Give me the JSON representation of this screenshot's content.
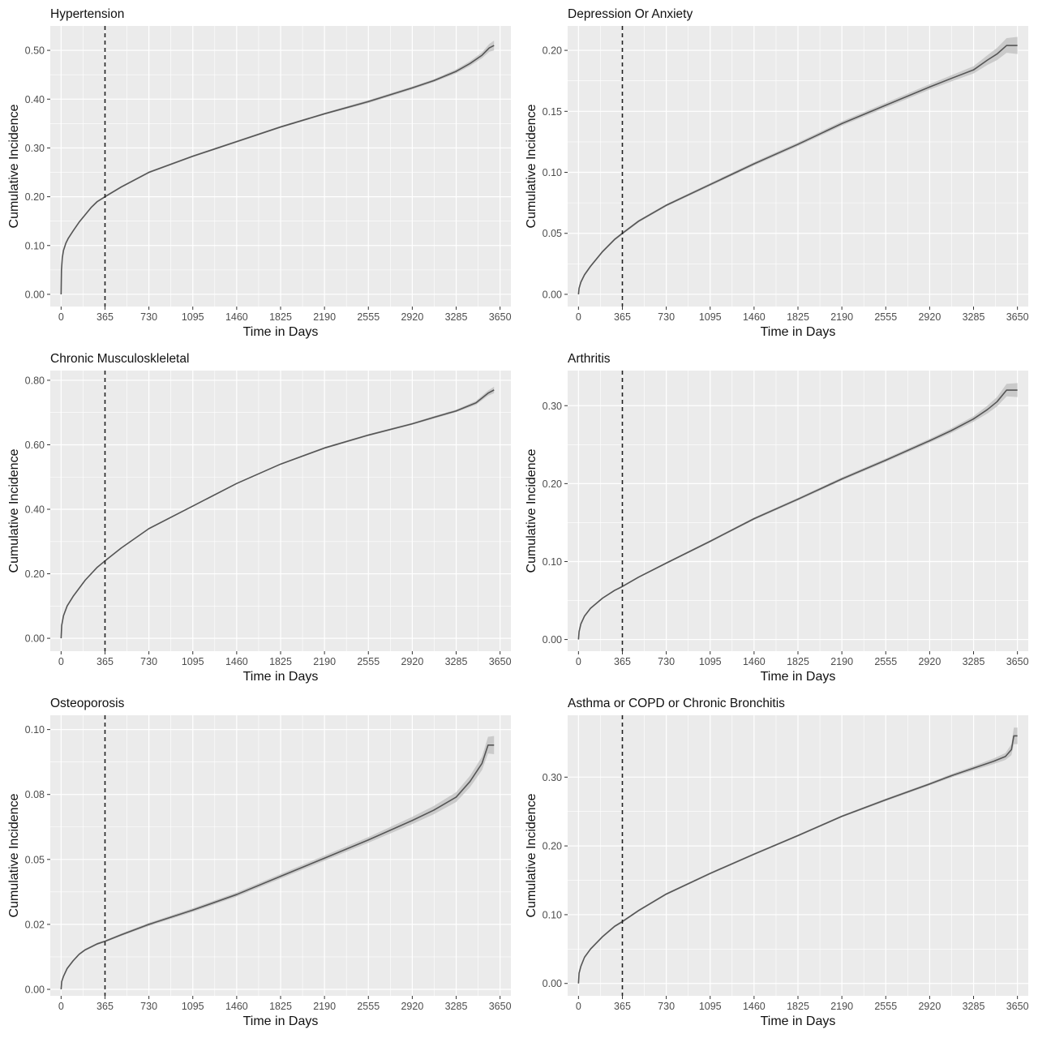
{
  "chart_data": [
    {
      "type": "line",
      "title": "Hypertension",
      "xlabel": "Time in Days",
      "ylabel": "Cumulative Incidence",
      "xlim": [
        -90,
        3740
      ],
      "ylim": [
        -0.025,
        0.55
      ],
      "xticks": [
        0,
        365,
        730,
        1095,
        1460,
        1825,
        2190,
        2555,
        2920,
        3285,
        3650
      ],
      "yticks": [
        0,
        0.1,
        0.2,
        0.3,
        0.4,
        0.5
      ],
      "ytick_labels": [
        "0.00",
        "0.10",
        "0.20",
        "0.30",
        "0.40",
        "0.50"
      ],
      "reference_line_x": 365,
      "grid": true,
      "series": [
        {
          "x": [
            0,
            3,
            10,
            20,
            40,
            60,
            100,
            150,
            200,
            250,
            300,
            365,
            500,
            730,
            1095,
            1460,
            1825,
            2190,
            2555,
            2920,
            3100,
            3285,
            3400,
            3500,
            3560,
            3600
          ],
          "y": [
            0,
            0.05,
            0.075,
            0.09,
            0.105,
            0.115,
            0.13,
            0.148,
            0.163,
            0.178,
            0.19,
            0.2,
            0.22,
            0.25,
            0.283,
            0.313,
            0.343,
            0.37,
            0.395,
            0.423,
            0.438,
            0.457,
            0.473,
            0.49,
            0.505,
            0.51
          ],
          "band": [
            0.001,
            0.002,
            0.002,
            0.002,
            0.002,
            0.002,
            0.002,
            0.002,
            0.002,
            0.002,
            0.002,
            0.002,
            0.002,
            0.002,
            0.002,
            0.002,
            0.002,
            0.002,
            0.003,
            0.003,
            0.003,
            0.004,
            0.005,
            0.006,
            0.008,
            0.01
          ]
        }
      ]
    },
    {
      "type": "line",
      "title": "Depression Or Anxiety",
      "xlabel": "Time in Days",
      "ylabel": "Cumulative Incidence",
      "xlim": [
        -90,
        3740
      ],
      "ylim": [
        -0.01,
        0.22
      ],
      "xticks": [
        0,
        365,
        730,
        1095,
        1460,
        1825,
        2190,
        2555,
        2920,
        3285,
        3650
      ],
      "yticks": [
        0,
        0.05,
        0.1,
        0.15,
        0.2
      ],
      "ytick_labels": [
        "0.00",
        "0.05",
        "0.10",
        "0.15",
        "0.20"
      ],
      "reference_line_x": 365,
      "grid": true,
      "series": [
        {
          "x": [
            0,
            5,
            20,
            50,
            100,
            200,
            300,
            365,
            500,
            730,
            1095,
            1460,
            1825,
            2190,
            2555,
            2920,
            3100,
            3285,
            3400,
            3480,
            3560,
            3650
          ],
          "y": [
            0,
            0.005,
            0.01,
            0.016,
            0.023,
            0.035,
            0.045,
            0.05,
            0.06,
            0.073,
            0.09,
            0.107,
            0.123,
            0.14,
            0.155,
            0.17,
            0.177,
            0.184,
            0.192,
            0.197,
            0.204,
            0.204
          ],
          "band": [
            0.0005,
            0.001,
            0.001,
            0.001,
            0.001,
            0.001,
            0.001,
            0.001,
            0.001,
            0.001,
            0.0012,
            0.0014,
            0.0015,
            0.0018,
            0.002,
            0.0022,
            0.0025,
            0.003,
            0.004,
            0.005,
            0.006,
            0.007
          ]
        }
      ]
    },
    {
      "type": "line",
      "title": "Chronic Musculoskleletal",
      "xlabel": "Time in Days",
      "ylabel": "Cumulative Incidence",
      "xlim": [
        -90,
        3740
      ],
      "ylim": [
        -0.04,
        0.83
      ],
      "xticks": [
        0,
        365,
        730,
        1095,
        1460,
        1825,
        2190,
        2555,
        2920,
        3285,
        3650
      ],
      "yticks": [
        0,
        0.2,
        0.4,
        0.6,
        0.8
      ],
      "ytick_labels": [
        "0.00",
        "0.20",
        "0.40",
        "0.60",
        "0.80"
      ],
      "reference_line_x": 365,
      "grid": true,
      "series": [
        {
          "x": [
            0,
            5,
            20,
            50,
            100,
            200,
            300,
            365,
            500,
            730,
            1095,
            1460,
            1825,
            2190,
            2555,
            2920,
            3100,
            3285,
            3450,
            3550,
            3600
          ],
          "y": [
            0,
            0.04,
            0.07,
            0.1,
            0.13,
            0.18,
            0.22,
            0.24,
            0.28,
            0.34,
            0.41,
            0.48,
            0.54,
            0.59,
            0.63,
            0.665,
            0.685,
            0.705,
            0.73,
            0.76,
            0.77
          ],
          "band": [
            0.001,
            0.002,
            0.002,
            0.002,
            0.002,
            0.002,
            0.002,
            0.002,
            0.002,
            0.002,
            0.002,
            0.002,
            0.002,
            0.003,
            0.003,
            0.003,
            0.004,
            0.004,
            0.006,
            0.008,
            0.01
          ]
        }
      ]
    },
    {
      "type": "line",
      "title": "Arthritis",
      "xlabel": "Time in Days",
      "ylabel": "Cumulative Incidence",
      "xlim": [
        -90,
        3740
      ],
      "ylim": [
        -0.015,
        0.345
      ],
      "xticks": [
        0,
        365,
        730,
        1095,
        1460,
        1825,
        2190,
        2555,
        2920,
        3285,
        3650
      ],
      "yticks": [
        0,
        0.1,
        0.2,
        0.3
      ],
      "ytick_labels": [
        "0.00",
        "0.10",
        "0.20",
        "0.30"
      ],
      "reference_line_x": 365,
      "grid": true,
      "series": [
        {
          "x": [
            0,
            5,
            20,
            50,
            100,
            200,
            300,
            365,
            500,
            730,
            1095,
            1460,
            1825,
            2190,
            2555,
            2920,
            3100,
            3285,
            3400,
            3480,
            3560,
            3650
          ],
          "y": [
            0,
            0.01,
            0.02,
            0.03,
            0.04,
            0.053,
            0.063,
            0.068,
            0.08,
            0.098,
            0.126,
            0.155,
            0.18,
            0.206,
            0.23,
            0.255,
            0.268,
            0.283,
            0.295,
            0.305,
            0.32,
            0.32
          ],
          "band": [
            0.0005,
            0.001,
            0.001,
            0.001,
            0.001,
            0.001,
            0.001,
            0.001,
            0.001,
            0.0012,
            0.0014,
            0.0016,
            0.0018,
            0.002,
            0.0022,
            0.0025,
            0.003,
            0.0035,
            0.005,
            0.006,
            0.008,
            0.009
          ]
        }
      ]
    },
    {
      "type": "line",
      "title": "Osteoporosis",
      "xlabel": "Time in Days",
      "ylabel": "Cumulative Incidence",
      "xlim": [
        -90,
        3740
      ],
      "ylim": [
        -0.0025,
        0.1055
      ],
      "xticks": [
        0,
        365,
        730,
        1095,
        1460,
        1825,
        2190,
        2555,
        2920,
        3285,
        3650
      ],
      "yticks": [
        0,
        0.025,
        0.05,
        0.075,
        0.1
      ],
      "ytick_labels": [
        "0.00",
        "0.02",
        "0.05",
        "0.08",
        "0.10"
      ],
      "reference_line_x": 365,
      "grid": true,
      "series": [
        {
          "x": [
            0,
            5,
            20,
            50,
            100,
            150,
            200,
            300,
            365,
            500,
            730,
            1095,
            1460,
            1825,
            2190,
            2555,
            2920,
            3100,
            3285,
            3400,
            3500,
            3550,
            3600
          ],
          "y": [
            0,
            0.003,
            0.005,
            0.008,
            0.011,
            0.0135,
            0.0152,
            0.0175,
            0.0185,
            0.021,
            0.025,
            0.0305,
            0.0365,
            0.0435,
            0.0505,
            0.0575,
            0.065,
            0.069,
            0.074,
            0.08,
            0.087,
            0.094,
            0.094
          ],
          "band": [
            0.0003,
            0.0004,
            0.0004,
            0.0004,
            0.0004,
            0.0004,
            0.0004,
            0.0004,
            0.0004,
            0.0005,
            0.0006,
            0.0007,
            0.0008,
            0.0009,
            0.001,
            0.0011,
            0.0014,
            0.0016,
            0.0019,
            0.0022,
            0.0026,
            0.0032,
            0.0035
          ]
        }
      ]
    },
    {
      "type": "line",
      "title": "Asthma or COPD or Chronic Bronchitis",
      "xlabel": "Time in Days",
      "ylabel": "Cumulative Incidence",
      "xlim": [
        -90,
        3740
      ],
      "ylim": [
        -0.018,
        0.39
      ],
      "xticks": [
        0,
        365,
        730,
        1095,
        1460,
        1825,
        2190,
        2555,
        2920,
        3285,
        3650
      ],
      "yticks": [
        0,
        0.1,
        0.2,
        0.3
      ],
      "ytick_labels": [
        "0.00",
        "0.10",
        "0.20",
        "0.30"
      ],
      "reference_line_x": 365,
      "grid": true,
      "series": [
        {
          "x": [
            0,
            5,
            20,
            50,
            100,
            200,
            300,
            365,
            500,
            730,
            1095,
            1460,
            1825,
            2190,
            2555,
            2920,
            3100,
            3285,
            3450,
            3550,
            3600,
            3620,
            3650
          ],
          "y": [
            0,
            0.015,
            0.025,
            0.038,
            0.05,
            0.068,
            0.083,
            0.09,
            0.106,
            0.13,
            0.16,
            0.188,
            0.215,
            0.243,
            0.267,
            0.29,
            0.302,
            0.313,
            0.323,
            0.33,
            0.34,
            0.36,
            0.36
          ],
          "band": [
            0.001,
            0.0015,
            0.0015,
            0.0015,
            0.0015,
            0.0015,
            0.0015,
            0.0015,
            0.0015,
            0.0015,
            0.0015,
            0.0015,
            0.0015,
            0.0015,
            0.0018,
            0.002,
            0.0025,
            0.003,
            0.004,
            0.005,
            0.008,
            0.012,
            0.012
          ]
        }
      ]
    }
  ]
}
